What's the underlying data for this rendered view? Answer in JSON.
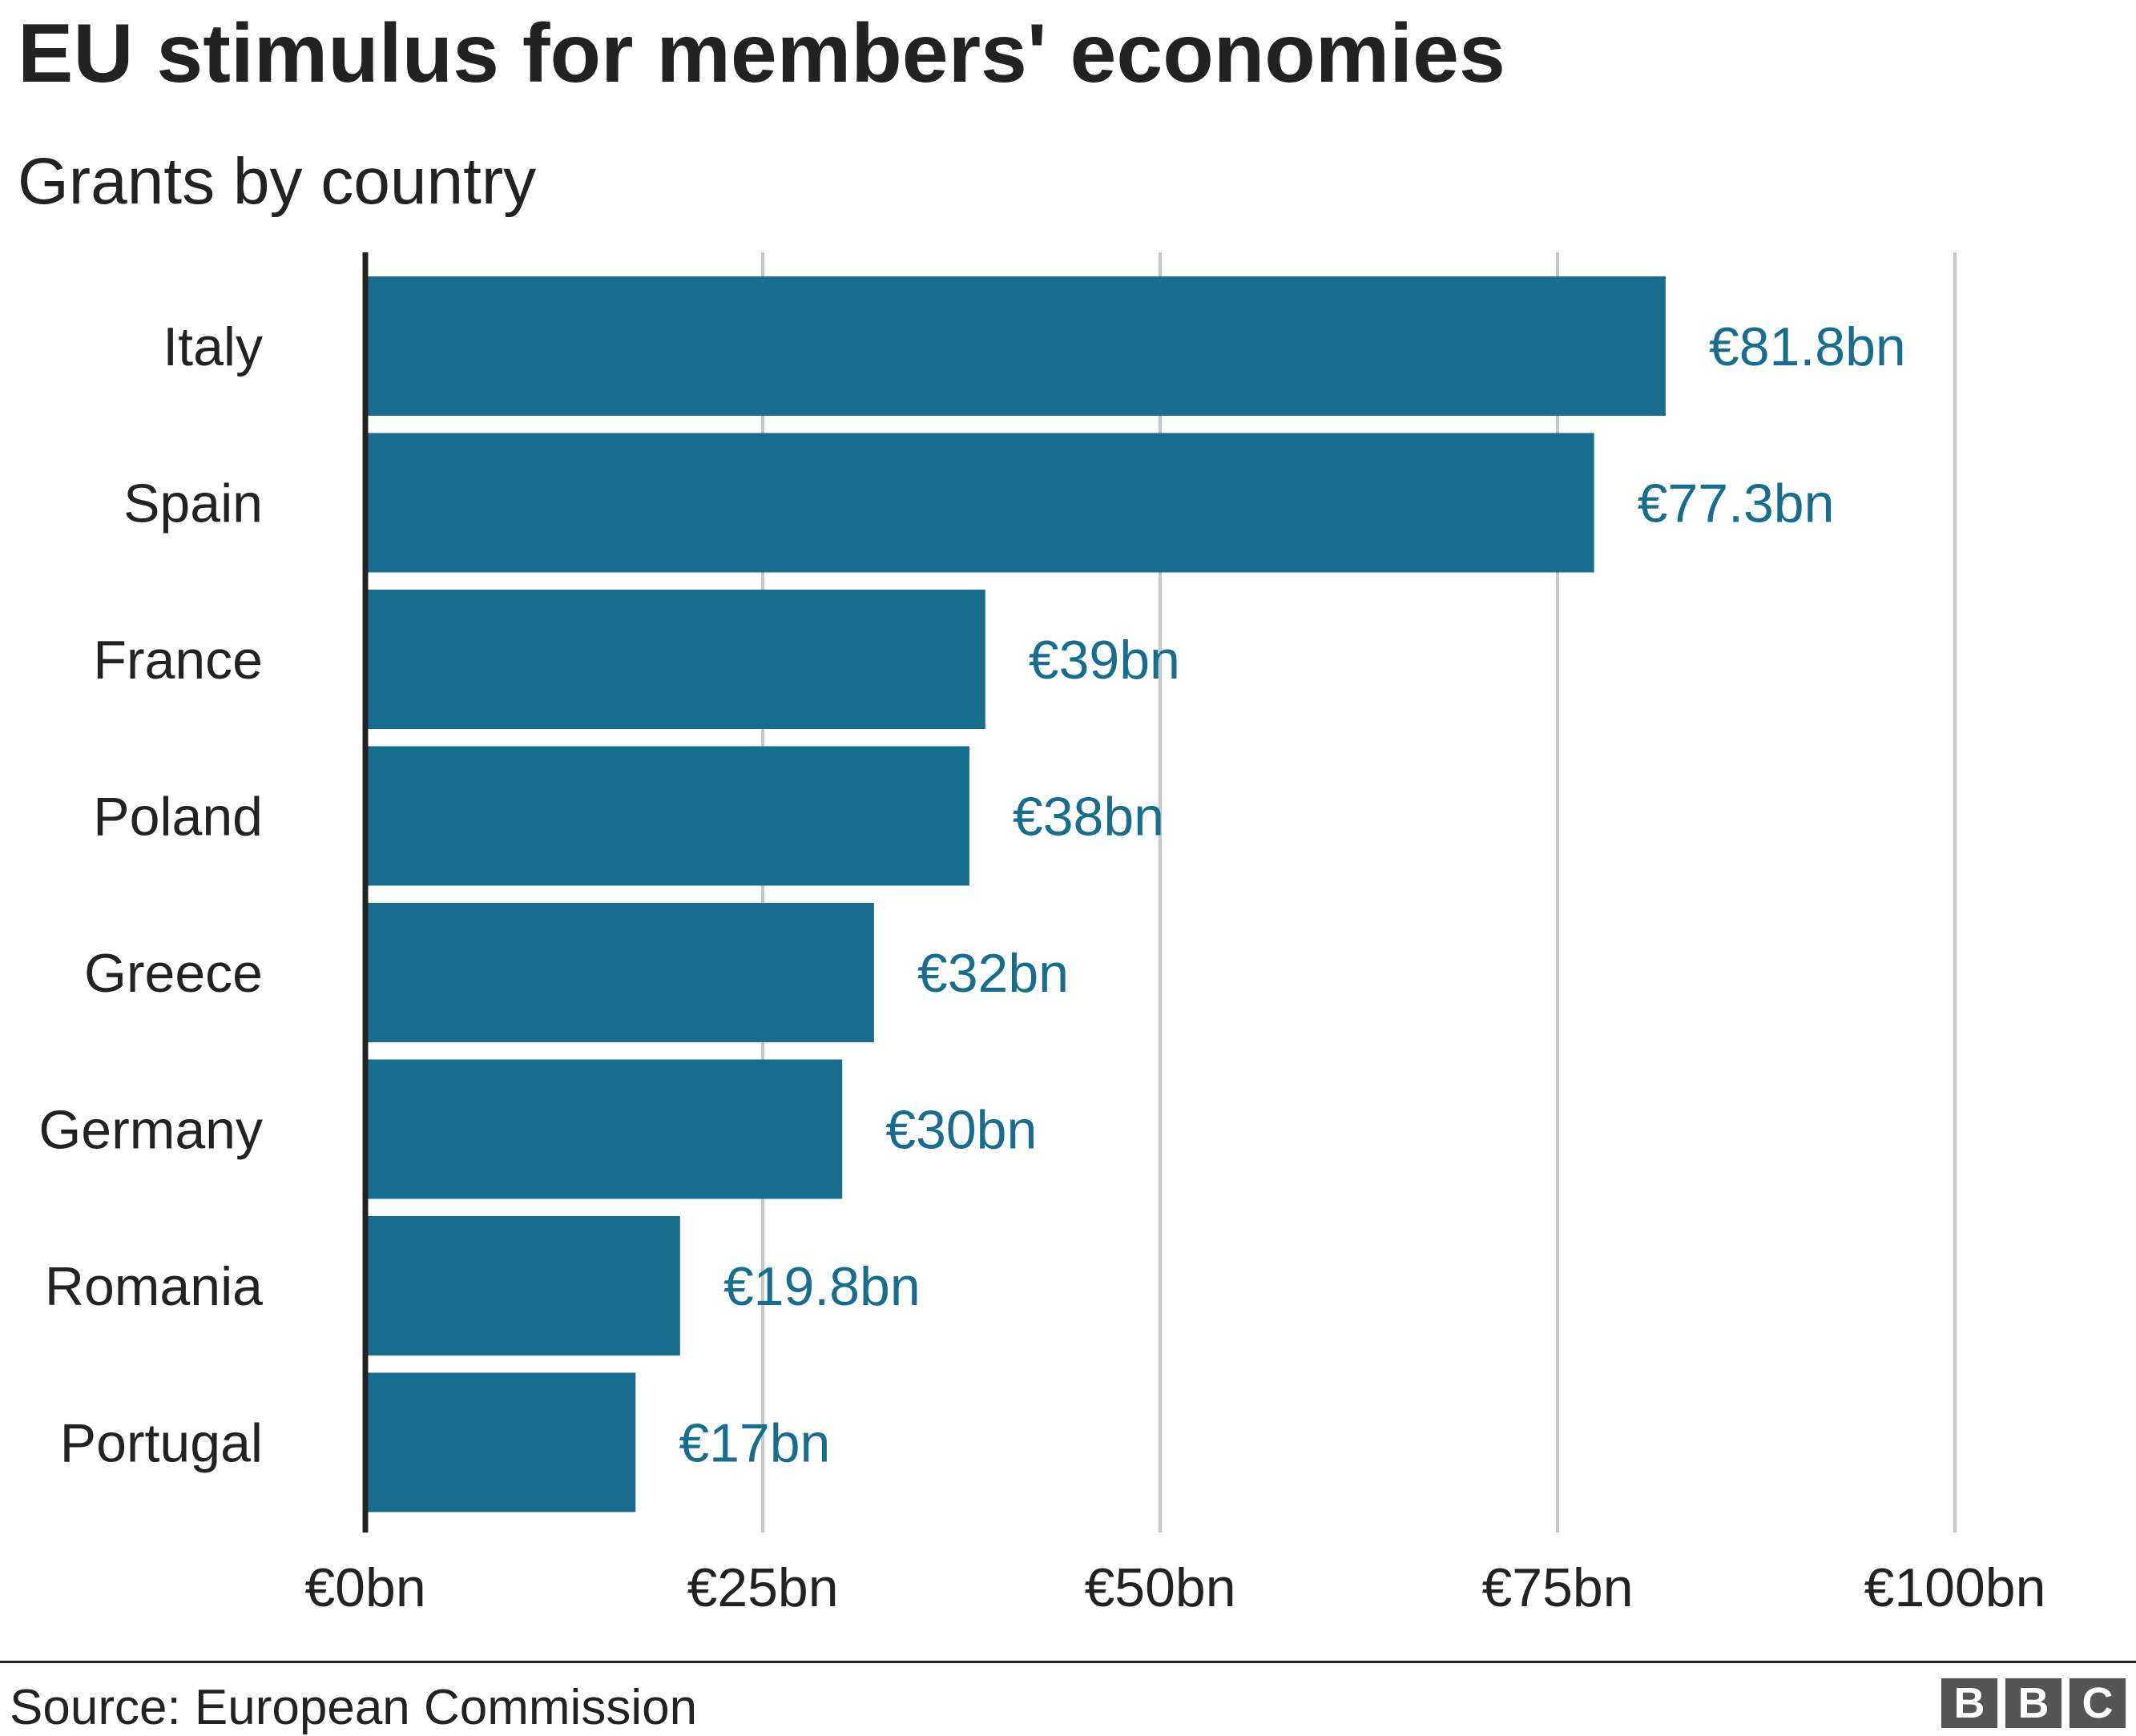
{
  "chart_data": {
    "type": "bar",
    "orientation": "horizontal",
    "title": "EU stimulus for members' economies",
    "subtitle": "Grants by country",
    "categories": [
      "Italy",
      "Spain",
      "France",
      "Poland",
      "Greece",
      "Germany",
      "Romania",
      "Portugal"
    ],
    "values": [
      81.8,
      77.3,
      39,
      38,
      32,
      30,
      19.8,
      17
    ],
    "data_labels": [
      "€81.8bn",
      "€77.3bn",
      "€39bn",
      "€38bn",
      "€32bn",
      "€30bn",
      "€19.8bn",
      "€17bn"
    ],
    "xlim": [
      0,
      100
    ],
    "xticks": [
      0,
      25,
      50,
      75,
      100
    ],
    "xtick_labels": [
      "€0bn",
      "€25bn",
      "€50bn",
      "€75bn",
      "€100bn"
    ],
    "grid": true,
    "xlabel": "",
    "ylabel": "",
    "bar_color": "#176d8e",
    "label_color": "#176d8e"
  },
  "footer": {
    "source": "Source: European Commission",
    "logo": [
      "B",
      "B",
      "C"
    ]
  }
}
